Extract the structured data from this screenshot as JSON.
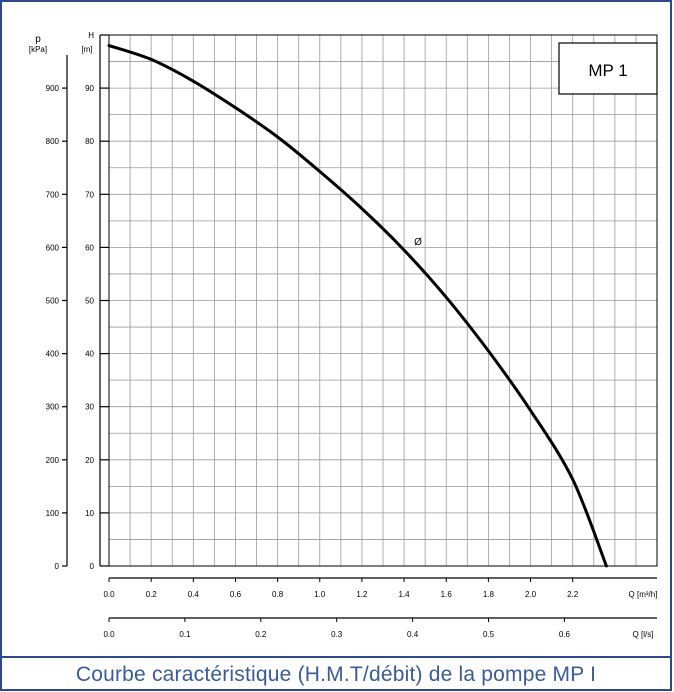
{
  "caption": "Courbe caractéristique (H.M.T/débit) de la pompe MP I",
  "colors": {
    "frame": "#2b4a86",
    "caption_text": "#3a5a98",
    "grid": "#9a9a9a",
    "curve": "#000000",
    "axis": "#000000"
  },
  "chart_data": {
    "type": "line",
    "title": "MP 1",
    "axes": {
      "pressure": {
        "symbol": "p",
        "unit": "[kPa]",
        "range": [
          0,
          1000
        ],
        "ticks": [
          0,
          100,
          200,
          300,
          400,
          500,
          600,
          700,
          800,
          900
        ],
        "tick_labels": [
          "0",
          "100",
          "200",
          "300",
          "400",
          "500",
          "600",
          "700",
          "800",
          "900"
        ]
      },
      "head": {
        "symbol": "H",
        "unit": "[m]",
        "range": [
          0,
          100
        ],
        "ticks": [
          0,
          10,
          20,
          30,
          40,
          50,
          60,
          70,
          80,
          90,
          100
        ],
        "tick_labels": [
          "0",
          "10",
          "20",
          "30",
          "40",
          "50",
          "60",
          "70",
          "80",
          "90",
          "H"
        ]
      },
      "flow_m3h": {
        "symbol": "Q",
        "unit": "[m³/h]",
        "range": [
          0,
          2.6
        ],
        "ticks": [
          0,
          0.2,
          0.4,
          0.6,
          0.8,
          1.0,
          1.2,
          1.4,
          1.6,
          1.8,
          2.0,
          2.2
        ],
        "tick_labels": [
          "0.0",
          "0.2",
          "0.4",
          "0.6",
          "0.8",
          "1.0",
          "1.2",
          "1.4",
          "1.6",
          "1.8",
          "2.0",
          "2.2"
        ]
      },
      "flow_ls": {
        "symbol": "Q",
        "unit": "[l/s]",
        "range": [
          0,
          0.722
        ],
        "ticks": [
          0,
          0.1,
          0.2,
          0.3,
          0.4,
          0.5,
          0.6
        ],
        "tick_labels": [
          "0.0",
          "0.1",
          "0.2",
          "0.3",
          "0.4",
          "0.5",
          "0.6"
        ]
      }
    },
    "grid": true,
    "curve_label": "Ø",
    "series": [
      {
        "x": [
          0,
          0.2,
          0.4,
          0.6,
          0.8,
          1.0,
          1.2,
          1.4,
          1.6,
          1.8,
          2.0,
          2.2,
          2.36
        ],
        "y": [
          98,
          95.4,
          91.3,
          86.3,
          80.8,
          74.3,
          67.3,
          59.5,
          50.6,
          40.5,
          29.3,
          16.3,
          0
        ]
      }
    ]
  }
}
